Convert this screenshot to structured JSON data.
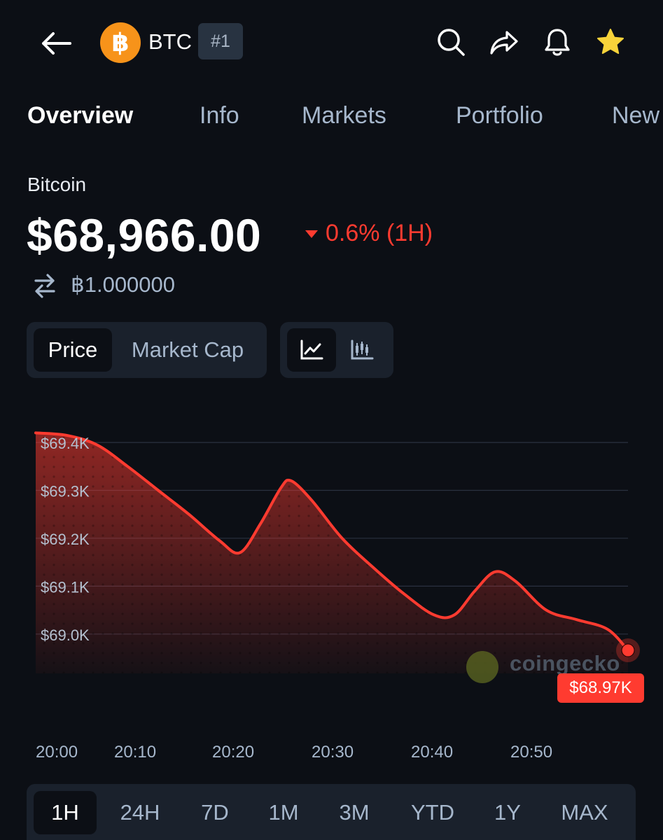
{
  "header": {
    "coin_symbol": "BTC",
    "rank": "#1",
    "coin_logo_glyph": "฿",
    "icons": [
      "back-arrow-icon",
      "search-icon",
      "share-icon",
      "bell-icon",
      "star-icon"
    ],
    "star_color": "#f8d33a",
    "brand_color": "#f7931a"
  },
  "tabs": [
    {
      "label": "Overview",
      "active": true
    },
    {
      "label": "Info"
    },
    {
      "label": "Markets"
    },
    {
      "label": "Portfolio"
    },
    {
      "label": "New"
    }
  ],
  "price_section": {
    "name": "Bitcoin",
    "price": "$68,966.00",
    "change": "0.6% (1H)",
    "change_direction": "down",
    "change_color": "#ff3b30",
    "btc_value": "฿1.000000"
  },
  "toggles": {
    "metric": [
      {
        "label": "Price",
        "active": true
      },
      {
        "label": "Market Cap"
      }
    ],
    "chart_style": [
      {
        "icon": "line-chart-icon",
        "active": true
      },
      {
        "icon": "candlestick-chart-icon"
      }
    ]
  },
  "chart_data": {
    "type": "area",
    "series": [
      {
        "x": [
          "20:00",
          "20:03",
          "20:06",
          "20:09",
          "20:12",
          "20:15",
          "20:18",
          "20:20",
          "20:22",
          "20:24",
          "20:25",
          "20:27",
          "20:30",
          "20:33",
          "20:36",
          "20:39",
          "20:41",
          "20:43",
          "20:45",
          "20:47",
          "20:50",
          "20:53",
          "20:56",
          "20:58"
        ],
        "values": [
          69420,
          69415,
          69395,
          69350,
          69300,
          69250,
          69195,
          69170,
          69230,
          69305,
          69320,
          69280,
          69200,
          69140,
          69085,
          69040,
          69040,
          69090,
          69130,
          69110,
          69050,
          69030,
          69010,
          68966
        ]
      }
    ],
    "x_ticks": [
      "20:00",
      "20:10",
      "20:20",
      "20:30",
      "20:40",
      "20:50"
    ],
    "y_ticks": [
      "$69.4K",
      "$69.3K",
      "$69.2K",
      "$69.1K",
      "$69.0K"
    ],
    "ylim": [
      68950,
      69425
    ],
    "last_value_label": "$68.97K",
    "line_color": "#ff3b30",
    "grid": true,
    "watermark": "coingecko"
  },
  "ranges": [
    {
      "label": "1H",
      "active": true
    },
    {
      "label": "24H"
    },
    {
      "label": "7D"
    },
    {
      "label": "1M"
    },
    {
      "label": "3M"
    },
    {
      "label": "YTD"
    },
    {
      "label": "1Y"
    },
    {
      "label": "MAX"
    }
  ]
}
